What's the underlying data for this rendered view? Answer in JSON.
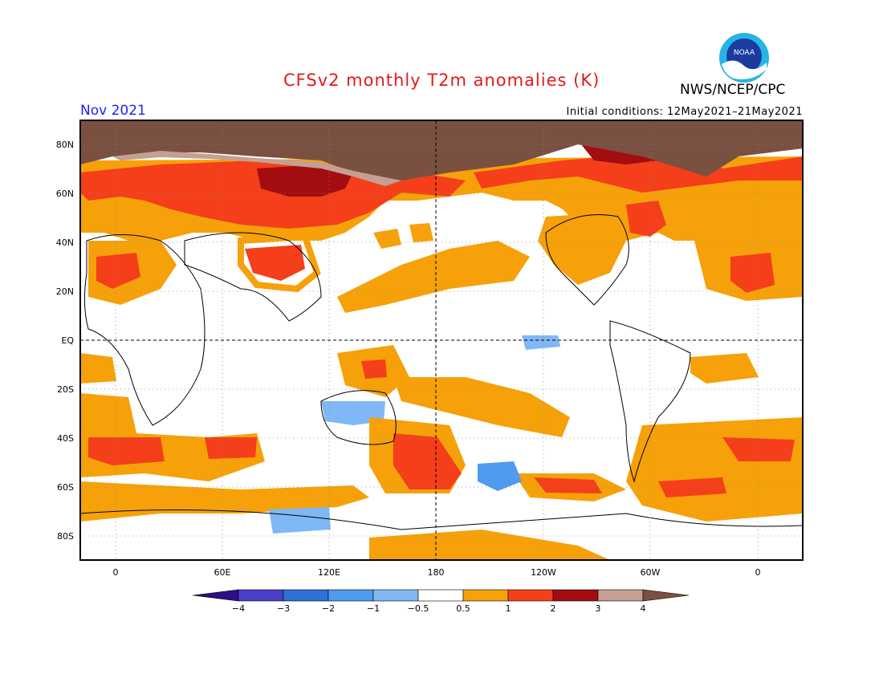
{
  "header": {
    "title": "CFSv2 monthly T2m anomalies (K)",
    "agency": "NWS/NCEP/CPC",
    "month": "Nov 2021",
    "initial_conditions": "Initial conditions: 12May2021–21May2021",
    "logo_text": "NOAA"
  },
  "map": {
    "lat_labels": [
      "80N",
      "60N",
      "40N",
      "20N",
      "EQ",
      "20S",
      "40S",
      "60S",
      "80S"
    ],
    "lon_labels": [
      "0",
      "60E",
      "120E",
      "180",
      "120W",
      "60W",
      "0"
    ]
  },
  "colorbar": {
    "labels": [
      "−4",
      "−3",
      "−2",
      "−1",
      "−0.5",
      "0.5",
      "1",
      "2",
      "3",
      "4"
    ],
    "colors": [
      "#2b0f86",
      "#4a3fc8",
      "#2f6fd8",
      "#4f9bf0",
      "#80b8f5",
      "#ffffff",
      "#f6a10a",
      "#f43f1a",
      "#a40d10",
      "#c4a092",
      "#7a5040"
    ]
  },
  "colors": {
    "anomaly_0_5_1": "#f6a10a",
    "anomaly_1_2": "#f43f1a",
    "anomaly_2_3": "#a40d10",
    "anomaly_3_4": "#c4a092",
    "anomaly_gt4": "#7a5040",
    "anomaly_neg_0_5_1": "#80b8f5",
    "anomaly_neg_1_2": "#4f9bf0",
    "title_red": "#e41a1c",
    "month_blue": "#2020ff"
  }
}
